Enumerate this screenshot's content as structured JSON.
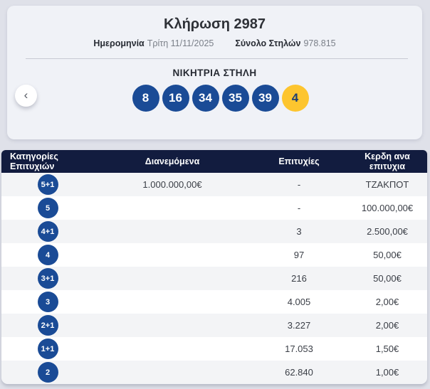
{
  "colors": {
    "ball_blue": "#1a4b96",
    "bonus_yellow": "#fdc52f",
    "table_header_navy": "#121c3f"
  },
  "draw": {
    "title": "Κλήρωση 2987",
    "date_label": "Ημερομηνία",
    "date_value": "Τρίτη 11/11/2025",
    "total_columns_label": "Σύνολο Στηλών",
    "total_columns_value": "978.815"
  },
  "carousel": {
    "prev_icon": "‹"
  },
  "winning_column": {
    "heading": "ΝΙΚΗΤΡΙΑ ΣΤΗΛΗ",
    "numbers": [
      "8",
      "16",
      "34",
      "35",
      "39"
    ],
    "bonus": "4"
  },
  "table": {
    "headers": {
      "categories": "Κατηγορίες Επιτυχιών",
      "distributed": "Διανεμόμενα",
      "wins": "Επιτυχίες",
      "prize": "Κερδη ανα επιτυχια"
    },
    "rows": [
      {
        "category": "5+1",
        "distributed": "1.000.000,00€",
        "wins": "-",
        "prize": "ΤΖΑΚΠΟΤ"
      },
      {
        "category": "5",
        "distributed": "",
        "wins": "-",
        "prize": "100.000,00€"
      },
      {
        "category": "4+1",
        "distributed": "",
        "wins": "3",
        "prize": "2.500,00€"
      },
      {
        "category": "4",
        "distributed": "",
        "wins": "97",
        "prize": "50,00€"
      },
      {
        "category": "3+1",
        "distributed": "",
        "wins": "216",
        "prize": "50,00€"
      },
      {
        "category": "3",
        "distributed": "",
        "wins": "4.005",
        "prize": "2,00€"
      },
      {
        "category": "2+1",
        "distributed": "",
        "wins": "3.227",
        "prize": "2,00€"
      },
      {
        "category": "1+1",
        "distributed": "",
        "wins": "17.053",
        "prize": "1,50€"
      },
      {
        "category": "2",
        "distributed": "",
        "wins": "62.840",
        "prize": "1,00€"
      }
    ]
  }
}
